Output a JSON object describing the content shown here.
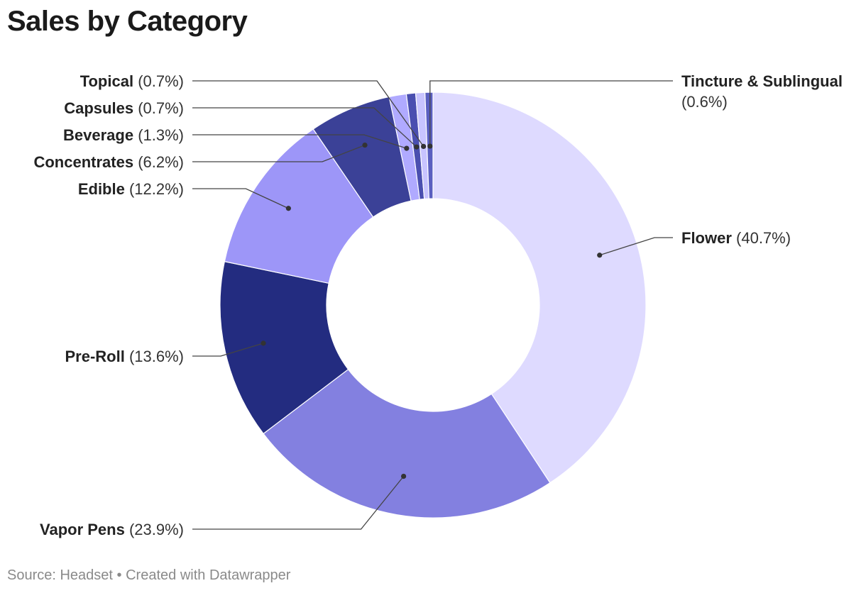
{
  "title": "Sales by Category",
  "footer": {
    "source": "Source: Headset",
    "separator": " • ",
    "credit": "Created with Datawrapper"
  },
  "chart_data": {
    "type": "pie",
    "variant": "donut",
    "title": "Sales by Category",
    "slices": [
      {
        "label": "Flower",
        "value": 40.7,
        "display": "(40.7%)",
        "color": "#dedaff"
      },
      {
        "label": "Vapor Pens",
        "value": 23.9,
        "display": "(23.9%)",
        "color": "#8380e0"
      },
      {
        "label": "Pre-Roll",
        "value": 13.6,
        "display": "(13.6%)",
        "color": "#232c80"
      },
      {
        "label": "Edible",
        "value": 12.2,
        "display": "(12.2%)",
        "color": "#9d96f8"
      },
      {
        "label": "Concentrates",
        "value": 6.2,
        "display": "(6.2%)",
        "color": "#3b4197"
      },
      {
        "label": "Beverage",
        "value": 1.3,
        "display": "(1.3%)",
        "color": "#b0aaff"
      },
      {
        "label": "Capsules",
        "value": 0.7,
        "display": "(0.7%)",
        "color": "#4a4fb0"
      },
      {
        "label": "Topical",
        "value": 0.7,
        "display": "(0.7%)",
        "color": "#c8c4ff"
      },
      {
        "label": "Tincture & Sublingual",
        "value": 0.6,
        "display": "(0.6%)",
        "color": "#5a5fc0"
      }
    ]
  }
}
